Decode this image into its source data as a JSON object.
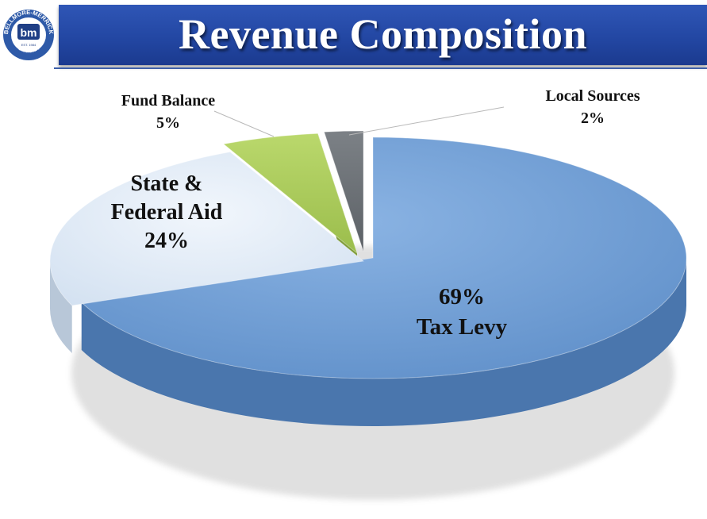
{
  "logo": {
    "ring_text": "BELLMORE-MERRICK",
    "bottom_text": "C.H.S.D.",
    "est": "EST. 1984",
    "monogram": "bm"
  },
  "chart_data": {
    "type": "pie",
    "title": "Revenue Composition",
    "slices": [
      {
        "label": "Tax Levy",
        "value": 69,
        "pct_text": "69%",
        "color": "#6b9bd5"
      },
      {
        "label": "State & Federal Aid",
        "value": 24,
        "pct_text": "24%",
        "color": "#dde8f4"
      },
      {
        "label": "Fund Balance",
        "value": 5,
        "pct_text": "5%",
        "color": "#a9c95a"
      },
      {
        "label": "Local Sources",
        "value": 2,
        "pct_text": "2%",
        "color": "#6e7378"
      }
    ]
  }
}
